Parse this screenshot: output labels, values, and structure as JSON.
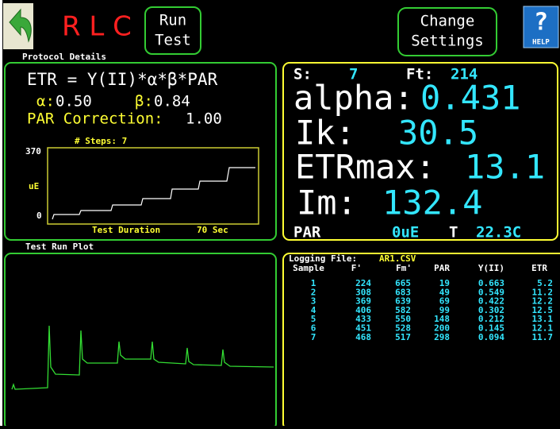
{
  "header": {
    "title": "R L C",
    "run_button": [
      "Run",
      "Test"
    ],
    "settings_button": [
      "Change",
      "Settings"
    ],
    "help_icon": "?",
    "help_label": "HELP"
  },
  "protocol": {
    "heading": "Protocol Details",
    "equation": "ETR = Y(II)*α*β*PAR",
    "alpha_label": "α:",
    "alpha": "0.50",
    "beta_label": "β:",
    "beta": "0.84",
    "par_label": "PAR Correction:",
    "par": "1.00",
    "steps": "# Steps: 7",
    "y_max": "370",
    "y_unit": "uE",
    "y_min": "0",
    "duration_label": "Test Duration",
    "duration": "70 Sec"
  },
  "results": {
    "s_label": "S:",
    "s": "7",
    "ft_label": "Ft:",
    "ft": "214",
    "alpha_label": "alpha:",
    "alpha": "0.431",
    "ik_label": "Ik:",
    "ik": "30.5",
    "etrmax_label": "ETRmax:",
    "etrmax": "13.1",
    "im_label": "Im:",
    "im": "132.4",
    "par_label": "PAR",
    "par": "0uE",
    "temp_label": "T",
    "temp": "22.3C"
  },
  "plot": {
    "heading": "Test Run Plot"
  },
  "log": {
    "label": "Logging File:",
    "file": "AR1.CSV",
    "columns": [
      "Sample",
      "F'",
      "Fm'",
      "PAR",
      "Y(II)",
      "ETR"
    ],
    "rows": [
      [
        "1",
        "224",
        "665",
        "19",
        "0.663",
        "5.2"
      ],
      [
        "2",
        "308",
        "683",
        "49",
        "0.549",
        "11.2"
      ],
      [
        "3",
        "369",
        "639",
        "69",
        "0.422",
        "12.2"
      ],
      [
        "4",
        "406",
        "582",
        "99",
        "0.302",
        "12.5"
      ],
      [
        "5",
        "433",
        "550",
        "148",
        "0.212",
        "13.1"
      ],
      [
        "6",
        "451",
        "528",
        "200",
        "0.145",
        "12.1"
      ],
      [
        "7",
        "468",
        "517",
        "298",
        "0.094",
        "11.7"
      ]
    ]
  }
}
